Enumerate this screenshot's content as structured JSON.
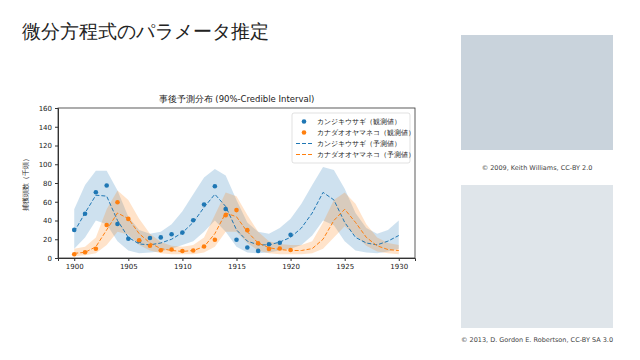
{
  "chart_data": {
    "type": "line",
    "title": "事後予測分布 (90%-Credible Interval)",
    "y_label": "捕獲頭数（千頭）",
    "x": [
      1900,
      1901,
      1902,
      1903,
      1904,
      1905,
      1906,
      1907,
      1908,
      1909,
      1910,
      1911,
      1912,
      1913,
      1914,
      1915,
      1916,
      1917,
      1918,
      1919,
      1920,
      1921,
      1922,
      1923,
      1924,
      1925,
      1926,
      1927,
      1928,
      1929,
      1930
    ],
    "xlim": [
      1898.5,
      1931.5
    ],
    "xticks": [
      1900,
      1905,
      1910,
      1915,
      1920,
      1925,
      1930
    ],
    "ylim": [
      0,
      160
    ],
    "yticks": [
      0,
      20,
      40,
      60,
      80,
      100,
      120,
      140,
      160
    ],
    "grid": false,
    "legend": "upper right",
    "series": [
      {
        "name": "カンジキウサギ（観測値）",
        "type": "scatter",
        "marker": "circle",
        "color": "#1f77b4",
        "values": [
          30,
          47.2,
          70.2,
          77.4,
          36.3,
          20.6,
          18.1,
          21.4,
          22,
          25.4,
          27.1,
          40.3,
          57,
          76.6,
          52.3,
          19.5,
          11.2,
          7.6,
          14.6,
          16.2,
          24.7,
          null,
          null,
          null,
          null,
          null,
          null,
          null,
          null,
          null,
          null
        ]
      },
      {
        "name": "カナダオオヤマネコ（観測値）",
        "type": "scatter",
        "marker": "circle",
        "color": "#ff7f0e",
        "values": [
          4,
          6.1,
          9.8,
          35.2,
          59.4,
          41.7,
          19,
          13,
          8.3,
          9.1,
          7.4,
          8,
          12.3,
          19.5,
          45.7,
          51.1,
          29.7,
          15.8,
          9.7,
          10.1,
          8.6,
          null,
          null,
          null,
          null,
          null,
          null,
          null,
          null,
          null,
          null
        ]
      },
      {
        "name": "カンジキウサギ（予測値）",
        "type": "line",
        "line_style": "dashed",
        "color": "#1f77b4",
        "values": [
          28,
          48,
          67,
          66,
          40,
          22,
          15,
          14,
          16,
          20,
          27,
          38,
          54,
          68,
          55,
          30,
          18,
          14,
          14,
          17,
          22,
          32,
          48,
          70,
          62,
          38,
          22,
          16,
          14,
          18,
          24
        ],
        "ci_lower": [
          10,
          22,
          40,
          36,
          18,
          8,
          5,
          6,
          7,
          10,
          14,
          18,
          28,
          40,
          28,
          12,
          6,
          5,
          6,
          8,
          10,
          14,
          24,
          40,
          35,
          18,
          8,
          6,
          5,
          7,
          10
        ],
        "ci_upper": [
          52,
          78,
          93,
          93,
          72,
          44,
          30,
          26,
          28,
          36,
          50,
          68,
          86,
          95,
          88,
          62,
          38,
          28,
          26,
          32,
          42,
          58,
          78,
          97,
          94,
          74,
          48,
          32,
          26,
          30,
          40
        ]
      },
      {
        "name": "カナダオオヤマネコ（予測値）",
        "type": "line",
        "line_style": "dashed",
        "color": "#ff7f0e",
        "values": [
          5,
          6,
          12,
          30,
          48,
          42,
          26,
          16,
          10,
          8,
          7,
          8,
          12,
          26,
          48,
          44,
          28,
          16,
          11,
          9,
          8,
          8,
          10,
          20,
          40,
          52,
          38,
          22,
          13,
          9,
          8
        ],
        "ci_lower": [
          2,
          3,
          5,
          14,
          28,
          25,
          14,
          8,
          5,
          4,
          4,
          4,
          6,
          12,
          28,
          28,
          16,
          8,
          5,
          4,
          4,
          4,
          5,
          10,
          22,
          34,
          24,
          13,
          7,
          5,
          4
        ],
        "ci_upper": [
          10,
          12,
          22,
          52,
          72,
          62,
          42,
          26,
          17,
          13,
          12,
          14,
          22,
          46,
          70,
          66,
          46,
          28,
          18,
          15,
          14,
          14,
          18,
          38,
          62,
          70,
          58,
          36,
          22,
          16,
          14
        ]
      }
    ]
  },
  "slide": {
    "title": "微分方程式のパラメータ推定",
    "credits": [
      "© 2009, Keith Williams, CC-BY 2.0",
      "© 2013, D. Gordon E. Robertson, CC-BY SA 3.0"
    ]
  }
}
